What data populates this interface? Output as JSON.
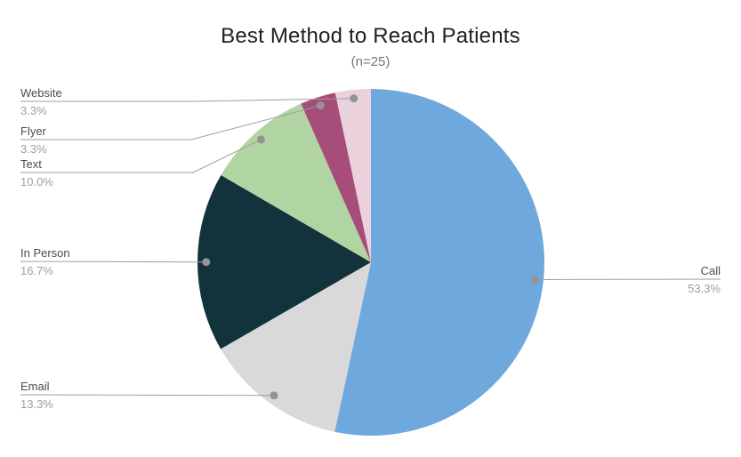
{
  "chart_data": {
    "type": "pie",
    "title": "Best Method to Reach Patients",
    "subtitle": "(n=25)",
    "sample_size": 25,
    "direction": "clockwise",
    "start_angle_deg": 0,
    "legend_position": "outside-callout-labels",
    "callout_line_color": "#9e9e9e",
    "label_color": "#4d4d4d",
    "percent_color": "#9e9e9e",
    "slices": [
      {
        "label": "Call",
        "value": 53.3,
        "pct_label": "53.3%",
        "color": "#6fa8dc"
      },
      {
        "label": "Email",
        "value": 13.3,
        "pct_label": "13.3%",
        "color": "#d9d9d9"
      },
      {
        "label": "In Person",
        "value": 16.7,
        "pct_label": "16.7%",
        "color": "#12333b"
      },
      {
        "label": "Text",
        "value": 10.0,
        "pct_label": "10.0%",
        "color": "#b0d5a2"
      },
      {
        "label": "Flyer",
        "value": 3.3,
        "pct_label": "3.3%",
        "color": "#a64d79"
      },
      {
        "label": "Website",
        "value": 3.3,
        "pct_label": "3.3%",
        "color": "#ead1dc"
      }
    ]
  }
}
